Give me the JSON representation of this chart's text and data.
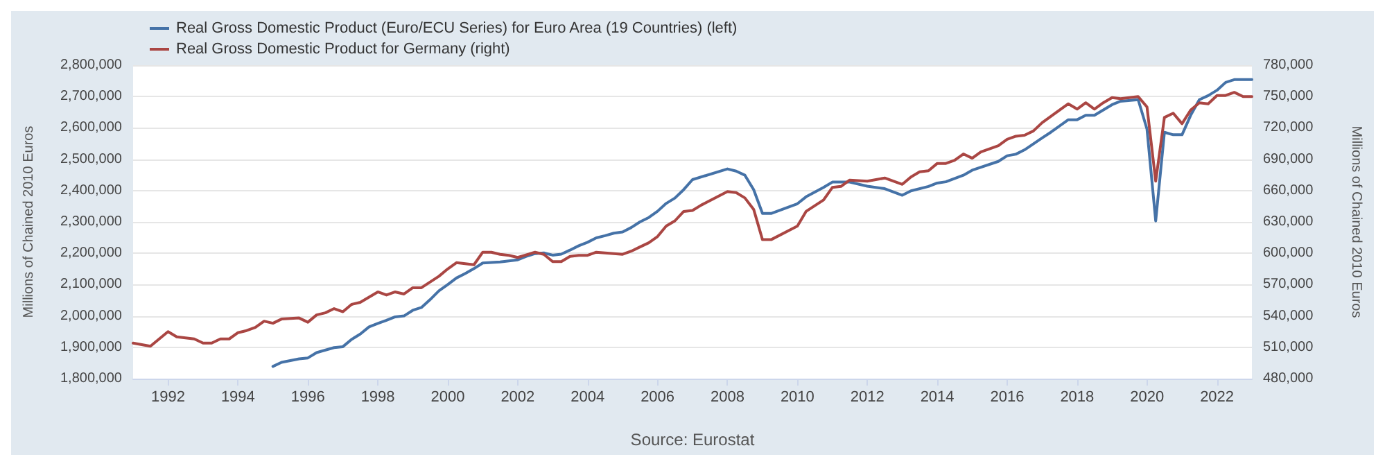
{
  "chart_data": {
    "type": "line",
    "series": [
      {
        "name": "Real Gross Domestic Product (Euro/ECU Series) for Euro Area (19 Countries) (left)",
        "color": "#4572a7",
        "axis": "y",
        "x": [
          "1995-01",
          "1995-04",
          "1995-10",
          "1996-01",
          "1996-04",
          "1996-10",
          "1997-01",
          "1997-04",
          "1997-07",
          "1997-10",
          "1998-01",
          "1998-04",
          "1998-07",
          "1998-10",
          "1999-01",
          "1999-04",
          "1999-07",
          "1999-10",
          "2000-01",
          "2000-04",
          "2000-07",
          "2000-10",
          "2001-01",
          "2001-07",
          "2002-01",
          "2002-04",
          "2002-07",
          "2002-10",
          "2003-01",
          "2003-04",
          "2003-07",
          "2003-10",
          "2004-01",
          "2004-04",
          "2004-07",
          "2004-10",
          "2005-01",
          "2005-04",
          "2005-07",
          "2005-10",
          "2006-01",
          "2006-04",
          "2006-07",
          "2006-10",
          "2007-01",
          "2008-01",
          "2008-04",
          "2008-07",
          "2008-10",
          "2009-01",
          "2009-04",
          "2010-01",
          "2010-04",
          "2010-10",
          "2011-01",
          "2011-07",
          "2012-01",
          "2012-07",
          "2013-01",
          "2013-04",
          "2013-10",
          "2014-01",
          "2014-04",
          "2014-10",
          "2015-01",
          "2015-10",
          "2016-01",
          "2016-04",
          "2016-07",
          "2017-01",
          "2017-04",
          "2017-10",
          "2018-01",
          "2018-04",
          "2018-07",
          "2019-01",
          "2019-04",
          "2019-10",
          "2020-01",
          "2020-04",
          "2020-07",
          "2020-10",
          "2021-01",
          "2021-04",
          "2021-07",
          "2021-10",
          "2022-01",
          "2022-04",
          "2022-07",
          "2022-10",
          "2023-01"
        ],
        "values": [
          1839000,
          1852000,
          1863000,
          1866000,
          1883000,
          1899000,
          1902000,
          1925000,
          1942000,
          1965000,
          1976000,
          1986000,
          1997000,
          2000000,
          2018000,
          2027000,
          2052000,
          2080000,
          2100000,
          2121000,
          2135000,
          2151000,
          2169000,
          2172000,
          2179000,
          2190000,
          2199000,
          2201000,
          2194000,
          2197000,
          2210000,
          2224000,
          2235000,
          2249000,
          2256000,
          2264000,
          2268000,
          2282000,
          2300000,
          2314000,
          2334000,
          2359000,
          2376000,
          2403000,
          2435000,
          2469000,
          2462000,
          2449000,
          2403000,
          2327000,
          2327000,
          2358000,
          2380000,
          2410000,
          2427000,
          2427000,
          2414000,
          2406000,
          2385000,
          2399000,
          2413000,
          2424000,
          2428000,
          2449000,
          2465000,
          2493000,
          2511000,
          2516000,
          2530000,
          2568000,
          2586000,
          2626000,
          2626000,
          2640000,
          2640000,
          2674000,
          2685000,
          2690000,
          2596000,
          2303000,
          2586000,
          2578000,
          2578000,
          2640000,
          2690000,
          2703000,
          2720000,
          2745000,
          2754000,
          2754000,
          2754000
        ]
      },
      {
        "name": "Real Gross Domestic Product for Germany (right)",
        "color": "#aa4643",
        "axis": "y2",
        "x": [
          "1991-01",
          "1991-07",
          "1992-01",
          "1992-04",
          "1992-10",
          "1993-01",
          "1993-04",
          "1993-07",
          "1993-10",
          "1994-01",
          "1994-04",
          "1994-07",
          "1994-10",
          "1995-01",
          "1995-04",
          "1995-10",
          "1996-01",
          "1996-04",
          "1996-07",
          "1996-10",
          "1997-01",
          "1997-04",
          "1997-07",
          "1998-01",
          "1998-04",
          "1998-07",
          "1998-10",
          "1999-01",
          "1999-04",
          "1999-10",
          "2000-01",
          "2000-04",
          "2000-07",
          "2000-10",
          "2001-01",
          "2001-04",
          "2001-07",
          "2001-10",
          "2002-01",
          "2002-07",
          "2002-10",
          "2003-01",
          "2003-04",
          "2003-07",
          "2003-10",
          "2004-01",
          "2004-04",
          "2005-01",
          "2005-04",
          "2005-07",
          "2005-10",
          "2006-01",
          "2006-04",
          "2006-07",
          "2006-10",
          "2007-01",
          "2007-04",
          "2008-01",
          "2008-04",
          "2008-07",
          "2008-10",
          "2009-01",
          "2009-04",
          "2010-01",
          "2010-04",
          "2010-10",
          "2011-01",
          "2011-04",
          "2011-07",
          "2012-01",
          "2012-07",
          "2013-01",
          "2013-04",
          "2013-07",
          "2013-10",
          "2014-01",
          "2014-04",
          "2014-07",
          "2014-10",
          "2015-01",
          "2015-04",
          "2015-10",
          "2016-01",
          "2016-04",
          "2016-07",
          "2016-10",
          "2017-01",
          "2017-04",
          "2017-10",
          "2018-01",
          "2018-04",
          "2018-07",
          "2018-10",
          "2019-01",
          "2019-04",
          "2019-07",
          "2019-10",
          "2020-01",
          "2020-04",
          "2020-07",
          "2020-10",
          "2021-01",
          "2021-04",
          "2021-07",
          "2021-10",
          "2022-01",
          "2022-04",
          "2022-07",
          "2022-10",
          "2023-01"
        ],
        "values": [
          514000,
          511000,
          525000,
          520000,
          518000,
          514000,
          514000,
          518000,
          518000,
          524000,
          526000,
          529000,
          535000,
          533000,
          537000,
          538000,
          534000,
          541000,
          543000,
          547000,
          544000,
          551000,
          553000,
          563000,
          560000,
          563000,
          561000,
          567000,
          567000,
          578000,
          585000,
          591000,
          590000,
          589000,
          601000,
          601000,
          599000,
          598000,
          596000,
          601000,
          599000,
          592000,
          592000,
          597000,
          598000,
          598000,
          601000,
          599000,
          602000,
          606000,
          610000,
          616000,
          626000,
          631000,
          640000,
          641000,
          646000,
          659000,
          658000,
          653000,
          642000,
          613000,
          613000,
          626000,
          640000,
          651000,
          663000,
          664000,
          670000,
          669000,
          672000,
          666000,
          673000,
          678000,
          679000,
          686000,
          686000,
          689000,
          695000,
          691000,
          697000,
          703000,
          709000,
          712000,
          713000,
          717000,
          725000,
          731000,
          743000,
          738000,
          744000,
          738000,
          744000,
          749000,
          748000,
          749000,
          750000,
          740000,
          669000,
          730000,
          734000,
          724000,
          737000,
          744000,
          743000,
          751000,
          751000,
          754000,
          750000,
          750000
        ]
      }
    ],
    "xlim": [
      "1991-01",
      "2023-01"
    ],
    "xticks": [
      "1992",
      "1994",
      "1996",
      "1998",
      "2000",
      "2002",
      "2004",
      "2006",
      "2008",
      "2010",
      "2012",
      "2014",
      "2016",
      "2018",
      "2020",
      "2022"
    ],
    "ylim": [
      1800000,
      2800000
    ],
    "yticks": [
      {
        "value": 1800000,
        "label": "1,800,000"
      },
      {
        "value": 1900000,
        "label": "1,900,000"
      },
      {
        "value": 2000000,
        "label": "2,000,000"
      },
      {
        "value": 2100000,
        "label": "2,100,000"
      },
      {
        "value": 2200000,
        "label": "2,200,000"
      },
      {
        "value": 2300000,
        "label": "2,300,000"
      },
      {
        "value": 2400000,
        "label": "2,400,000"
      },
      {
        "value": 2500000,
        "label": "2,500,000"
      },
      {
        "value": 2600000,
        "label": "2,600,000"
      },
      {
        "value": 2700000,
        "label": "2,700,000"
      },
      {
        "value": 2800000,
        "label": "2,800,000"
      }
    ],
    "y2lim": [
      480000,
      780000
    ],
    "y2ticks": [
      {
        "value": 480000,
        "label": "480,000"
      },
      {
        "value": 510000,
        "label": "510,000"
      },
      {
        "value": 540000,
        "label": "540,000"
      },
      {
        "value": 570000,
        "label": "570,000"
      },
      {
        "value": 600000,
        "label": "600,000"
      },
      {
        "value": 630000,
        "label": "630,000"
      },
      {
        "value": 660000,
        "label": "660,000"
      },
      {
        "value": 690000,
        "label": "690,000"
      },
      {
        "value": 720000,
        "label": "720,000"
      },
      {
        "value": 750000,
        "label": "750,000"
      },
      {
        "value": 780000,
        "label": "780,000"
      }
    ],
    "ylabel": "Millions of Chained 2010 Euros",
    "y2label": "Millions of Chained 2010 Euros",
    "annotations": [
      "Source: Eurostat"
    ],
    "grid": "y",
    "legend": "top left",
    "marker": "none",
    "line_style": "solid"
  }
}
